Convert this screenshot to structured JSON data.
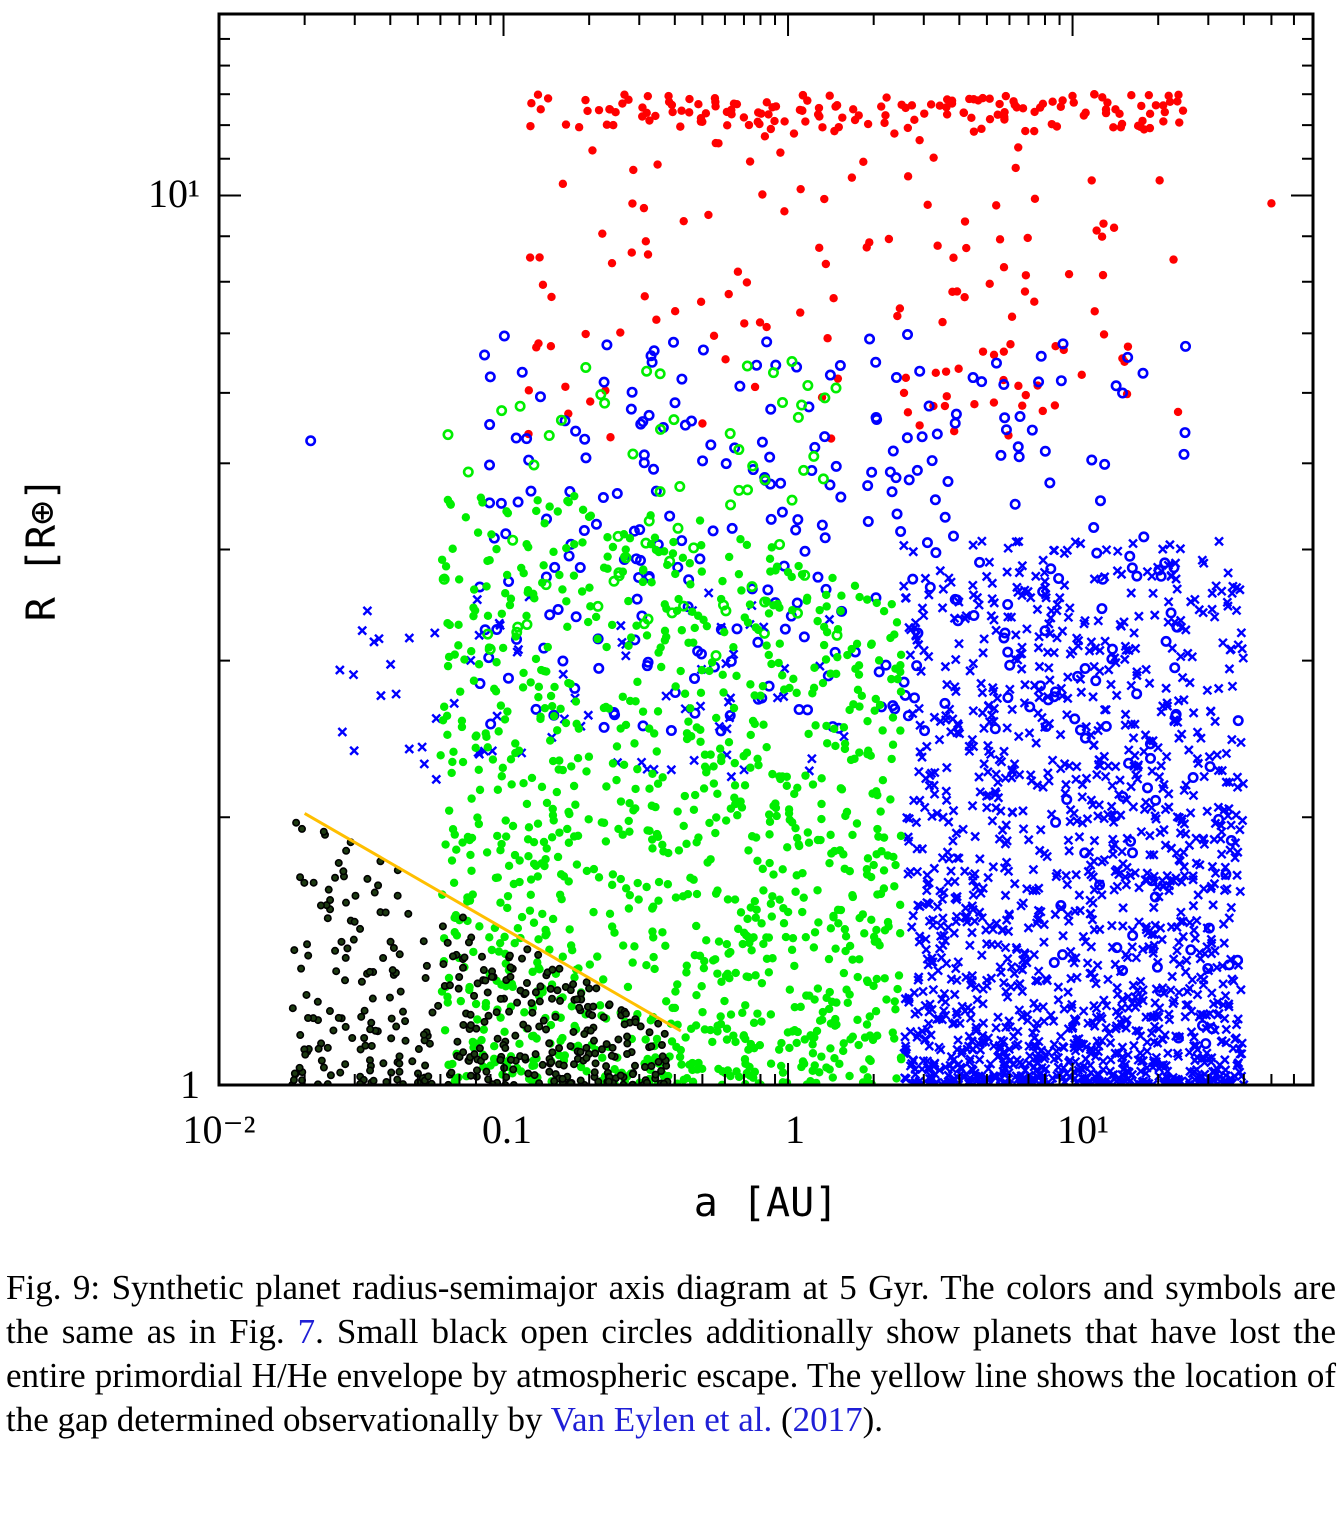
{
  "chart_data": {
    "type": "scatter",
    "xlabel": "a [AU]",
    "ylabel": "R [R⊕]",
    "xscale": "log",
    "yscale": "log",
    "xlim": [
      0.01,
      70
    ],
    "ylim": [
      1,
      16
    ],
    "grid": false,
    "x_ticks": [
      {
        "value": 0.01,
        "label": "10⁻²"
      },
      {
        "value": 0.1,
        "label": "0.1"
      },
      {
        "value": 1,
        "label": "1"
      },
      {
        "value": 10,
        "label": "10¹"
      }
    ],
    "y_ticks": [
      {
        "value": 1,
        "label": "1"
      },
      {
        "value": 10,
        "label": "10¹"
      }
    ],
    "reference_line": {
      "description": "gap (Van Eylen et al. 2017)",
      "color": "#ffbf00",
      "x": [
        0.02,
        0.42
      ],
      "y": [
        2.02,
        1.15
      ]
    },
    "series": [
      {
        "group": "red filled",
        "color": "#ff0000",
        "marker": "filled-circle",
        "x_range": [
          0.12,
          50
        ],
        "y_range": [
          5.3,
          13.0
        ],
        "approx_count": 300
      },
      {
        "group": "blue open",
        "color": "#0000ff",
        "marker": "open-circle",
        "x_range": [
          0.02,
          40
        ],
        "y_range": [
          2.5,
          7.0
        ],
        "approx_count": 330
      },
      {
        "group": "green open",
        "color": "#00ee00",
        "marker": "open-circle",
        "x_range": [
          0.06,
          1.5
        ],
        "y_range": [
          3.0,
          6.6
        ],
        "approx_count": 70
      },
      {
        "group": "blue cross",
        "color": "#0000ff",
        "marker": "cross",
        "x_range": [
          0.025,
          40
        ],
        "y_range": [
          1.0,
          4.1
        ],
        "approx_count": 1500
      },
      {
        "group": "green filled",
        "color": "#00ee00",
        "marker": "filled-circle",
        "x_range": [
          0.06,
          2.5
        ],
        "y_range": [
          1.0,
          4.6
        ],
        "approx_count": 1100
      },
      {
        "group": "black open",
        "color": "#000000",
        "marker": "small-open-circle",
        "x_range": [
          0.018,
          0.38
        ],
        "y_range": [
          1.0,
          2.2
        ],
        "approx_count": 380
      }
    ]
  },
  "caption": {
    "text_1": "Fig. 9: Synthetic planet radius-semimajor axis diagram at 5 Gyr. The colors and symbols are the same as in Fig. ",
    "ref_fig": "7",
    "text_2": ". Small black open circles additionally show planets that have lost the entire primordial H/He envelope by atmospheric escape. The yellow line shows the location of the gap determined observationally by ",
    "ref_cite": "Van Eylen et al.",
    "text_3": " (",
    "ref_year": "2017",
    "text_4": ")."
  }
}
